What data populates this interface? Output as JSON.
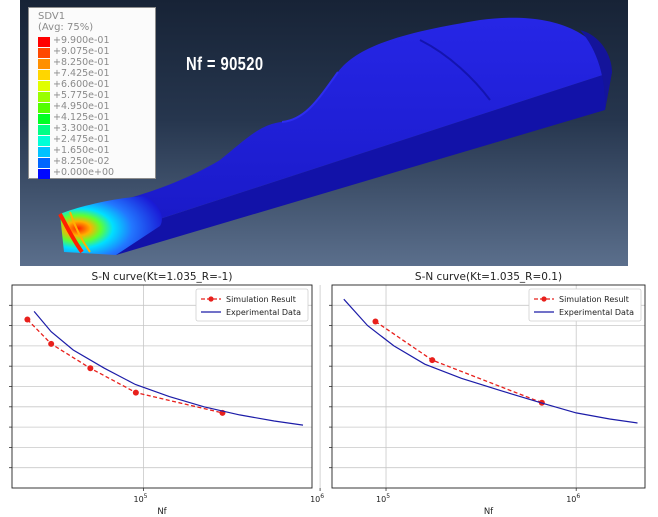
{
  "simulation": {
    "legend": {
      "variable": "SDV1",
      "averaging": "(Avg: 75%)",
      "levels": [
        {
          "label": "+9.900e-01",
          "color": "#ff0000"
        },
        {
          "label": "+9.075e-01",
          "color": "#ff4800"
        },
        {
          "label": "+8.250e-01",
          "color": "#ff8f00"
        },
        {
          "label": "+7.425e-01",
          "color": "#ffd600"
        },
        {
          "label": "+6.600e-01",
          "color": "#e0ff00"
        },
        {
          "label": "+5.775e-01",
          "color": "#99ff00"
        },
        {
          "label": "+4.950e-01",
          "color": "#52ff00"
        },
        {
          "label": "+4.125e-01",
          "color": "#00ff24"
        },
        {
          "label": "+3.300e-01",
          "color": "#00ff85"
        },
        {
          "label": "+2.475e-01",
          "color": "#00ffd6"
        },
        {
          "label": "+1.650e-01",
          "color": "#00c2ff"
        },
        {
          "label": "+8.250e-02",
          "color": "#0066ff"
        },
        {
          "label": "+0.000e+00",
          "color": "#0008ff"
        }
      ]
    },
    "nf_label": "Nf = 90520",
    "model_color": "#1a1ad6"
  },
  "chart_data": [
    {
      "type": "line",
      "title": "S-N curve(Kt=1.035_R=-1)",
      "xlabel": "Nf",
      "ylabel": "",
      "xscale": "log",
      "xlim": [
        18000,
        900000
      ],
      "ylim": [
        0,
        10
      ],
      "xtick_labels": [
        {
          "value": 100000,
          "base": "10",
          "exp": "5"
        },
        {
          "value": 1000000,
          "base": "10",
          "exp": "6"
        }
      ],
      "grid": true,
      "legend_position": "top-right",
      "series": [
        {
          "name": "Simulation Result",
          "style": "dashed-markers",
          "color": "#e8201c",
          "points": [
            [
              22000,
              8.3
            ],
            [
              30000,
              7.1
            ],
            [
              50000,
              5.9
            ],
            [
              90520,
              4.7
            ],
            [
              280000,
              3.7
            ]
          ]
        },
        {
          "name": "Experimental Data",
          "style": "solid",
          "color": "#1c1ca8",
          "points": [
            [
              24000,
              8.7
            ],
            [
              30000,
              7.7
            ],
            [
              40000,
              6.8
            ],
            [
              60000,
              5.9
            ],
            [
              90000,
              5.1
            ],
            [
              140000,
              4.5
            ],
            [
              220000,
              4.0
            ],
            [
              350000,
              3.6
            ],
            [
              550000,
              3.3
            ],
            [
              800000,
              3.1
            ]
          ]
        }
      ]
    },
    {
      "type": "line",
      "title": "S-N curve(Kt=1.035_R=0.1)",
      "xlabel": "Nf",
      "ylabel": "",
      "xscale": "log",
      "xlim": [
        52000,
        2300000
      ],
      "ylim": [
        0,
        10
      ],
      "xtick_labels": [
        {
          "value": 100000,
          "base": "10",
          "exp": "5"
        },
        {
          "value": 1000000,
          "base": "10",
          "exp": "6"
        }
      ],
      "grid": true,
      "legend_position": "top-right",
      "series": [
        {
          "name": "Simulation Result",
          "style": "dashed-markers",
          "color": "#e8201c",
          "points": [
            [
              88000,
              8.2
            ],
            [
              175000,
              6.3
            ],
            [
              660000,
              4.2
            ]
          ]
        },
        {
          "name": "Experimental Data",
          "style": "solid",
          "color": "#1c1ca8",
          "points": [
            [
              60000,
              9.3
            ],
            [
              80000,
              8.0
            ],
            [
              110000,
              7.0
            ],
            [
              160000,
              6.1
            ],
            [
              250000,
              5.4
            ],
            [
              400000,
              4.8
            ],
            [
              650000,
              4.2
            ],
            [
              1000000,
              3.7
            ],
            [
              1500000,
              3.4
            ],
            [
              2100000,
              3.2
            ]
          ]
        }
      ]
    }
  ]
}
